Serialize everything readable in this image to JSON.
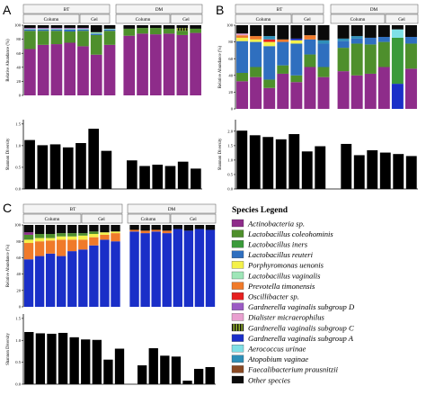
{
  "panel_labels": [
    "A",
    "B",
    "C"
  ],
  "group_labels": {
    "bt": "BT",
    "dm": "DM",
    "column": "Column",
    "gel": "Gel"
  },
  "axis_labels": {
    "abundance": "Relative Abundance (%)",
    "diversity": "Shannon Diversity"
  },
  "legend": {
    "title": "Species Legend",
    "items": [
      {
        "key": "actino",
        "label": "Actinobacteria sp.",
        "color": "#8e2c8a",
        "italic": true
      },
      {
        "key": "lcol",
        "label": "Lactobacillus coleohominis",
        "color": "#4e8f2c",
        "italic": true
      },
      {
        "key": "liners",
        "label": "Lactobacillus iners",
        "color": "#3a9a3a",
        "italic": true
      },
      {
        "key": "lreu",
        "label": "Lactobacillus reuteri",
        "color": "#2f6fbf",
        "italic": true
      },
      {
        "key": "porph",
        "label": "Porphyromonas uenonis",
        "color": "#f4f14a",
        "italic": true
      },
      {
        "key": "lvag",
        "label": "Lactobacillus vaginalis",
        "color": "#9fe6b8",
        "italic": true
      },
      {
        "key": "prev",
        "label": "Prevotella timonensis",
        "color": "#f07a2a",
        "italic": true
      },
      {
        "key": "osc",
        "label": "Oscillibacter sp.",
        "color": "#e62020",
        "italic": true
      },
      {
        "key": "gvD",
        "label": "Gardnerella vaginalis subgroup D",
        "color": "#9b5bc4",
        "italic": true
      },
      {
        "key": "dial",
        "label": "Dialister micraerophilus",
        "color": "#e9a0d0",
        "italic": true
      },
      {
        "key": "gvC",
        "label": "Gardnerella vaginalis subgroup C",
        "color": "#8fae2a",
        "italic": true,
        "striped": true
      },
      {
        "key": "gvA",
        "label": "Gardnerella vaginalis subgroup A",
        "color": "#1a2fc8",
        "italic": true
      },
      {
        "key": "aero",
        "label": "Aerococcus urinae",
        "color": "#7fe0e6",
        "italic": true
      },
      {
        "key": "atop",
        "label": "Atopobium vaginae",
        "color": "#2e8fb8",
        "italic": true
      },
      {
        "key": "faec",
        "label": "Faecalibacterium prausnitzii",
        "color": "#8a4a24",
        "italic": true
      },
      {
        "key": "other",
        "label": "Other species",
        "color": "#0a0a0a",
        "italic": true
      }
    ]
  },
  "chart_data": [
    {
      "type": "bar",
      "panel": "A",
      "title": "",
      "stacked": true,
      "ylabel": "Relative Abundance (%)",
      "ylim": [
        0,
        100
      ],
      "yticks": [
        "0",
        "20",
        "40",
        "60",
        "80",
        "100"
      ],
      "groups": [
        {
          "label": "BT",
          "subgroups": [
            {
              "label": "Column",
              "n": 5
            },
            {
              "label": "Gel",
              "n": 2
            }
          ]
        },
        {
          "label": "DM",
          "subgroups": [
            {
              "label": "Column",
              "n": 4
            },
            {
              "label": "Gel",
              "n": 2
            }
          ]
        }
      ],
      "bars": [
        [
          [
            "actino",
            66
          ],
          [
            "lcol",
            26
          ],
          [
            "lreu",
            2
          ],
          [
            "lvag",
            1
          ],
          [
            "gvD",
            1
          ],
          [
            "other",
            4
          ]
        ],
        [
          [
            "actino",
            72
          ],
          [
            "lcol",
            20
          ],
          [
            "lreu",
            2
          ],
          [
            "lvag",
            1
          ],
          [
            "gvD",
            1
          ],
          [
            "other",
            4
          ]
        ],
        [
          [
            "actino",
            73
          ],
          [
            "lcol",
            19
          ],
          [
            "lreu",
            2
          ],
          [
            "lvag",
            1
          ],
          [
            "gvD",
            1
          ],
          [
            "other",
            4
          ]
        ],
        [
          [
            "actino",
            75
          ],
          [
            "lcol",
            16
          ],
          [
            "lreu",
            3
          ],
          [
            "lvag",
            1
          ],
          [
            "gvD",
            1
          ],
          [
            "other",
            4
          ]
        ],
        [
          [
            "actino",
            70
          ],
          [
            "lcol",
            22
          ],
          [
            "lreu",
            2
          ],
          [
            "lvag",
            1
          ],
          [
            "gvD",
            1
          ],
          [
            "other",
            4
          ]
        ],
        [
          [
            "actino",
            58
          ],
          [
            "lcol",
            28
          ],
          [
            "lreu",
            2
          ],
          [
            "lvag",
            2
          ],
          [
            "other",
            10
          ]
        ],
        [
          [
            "actino",
            72
          ],
          [
            "lcol",
            20
          ],
          [
            "lreu",
            2
          ],
          [
            "lvag",
            1
          ],
          [
            "other",
            5
          ]
        ],
        [
          [
            "actino",
            85
          ],
          [
            "lcol",
            10
          ],
          [
            "other",
            5
          ]
        ],
        [
          [
            "actino",
            88
          ],
          [
            "lcol",
            8
          ],
          [
            "other",
            4
          ]
        ],
        [
          [
            "actino",
            87
          ],
          [
            "lcol",
            9
          ],
          [
            "other",
            4
          ]
        ],
        [
          [
            "actino",
            88
          ],
          [
            "lcol",
            7
          ],
          [
            "other",
            5
          ]
        ],
        [
          [
            "actino",
            86
          ],
          [
            "lcol",
            6
          ],
          [
            "gvC",
            4
          ],
          [
            "other",
            4
          ]
        ],
        [
          [
            "actino",
            89
          ],
          [
            "lcol",
            6
          ],
          [
            "other",
            5
          ]
        ]
      ]
    },
    {
      "type": "bar",
      "panel": "A",
      "title": "",
      "ylabel": "Shannon Diversity",
      "ylim": [
        0,
        1.6
      ],
      "yticks": [
        "0.0",
        "0.5",
        "1.0",
        "1.5"
      ],
      "values": [
        1.13,
        1.01,
        1.03,
        0.96,
        1.06,
        1.39,
        0.88,
        null,
        0.66,
        0.53,
        0.56,
        0.53,
        0.63,
        0.47
      ]
    },
    {
      "type": "bar",
      "panel": "B",
      "title": "",
      "stacked": true,
      "ylabel": "Relative Abundance (%)",
      "ylim": [
        0,
        100
      ],
      "yticks": [
        "0",
        "20",
        "40",
        "60",
        "80",
        "100"
      ],
      "groups": [
        {
          "label": "BT",
          "subgroups": [
            {
              "label": "Column",
              "n": 5
            },
            {
              "label": "Gel",
              "n": 2
            }
          ]
        },
        {
          "label": "DM",
          "subgroups": [
            {
              "label": "Column",
              "n": 4
            },
            {
              "label": "Gel",
              "n": 2
            }
          ]
        }
      ],
      "bars": [
        [
          [
            "actino",
            33
          ],
          [
            "lcol",
            10
          ],
          [
            "lreu",
            38
          ],
          [
            "porph",
            4
          ],
          [
            "prev",
            3
          ],
          [
            "dial",
            2
          ],
          [
            "other",
            10
          ]
        ],
        [
          [
            "actino",
            38
          ],
          [
            "lcol",
            12
          ],
          [
            "lreu",
            30
          ],
          [
            "porph",
            3
          ],
          [
            "prev",
            4
          ],
          [
            "other",
            13
          ]
        ],
        [
          [
            "actino",
            25
          ],
          [
            "lcol",
            10
          ],
          [
            "lreu",
            40
          ],
          [
            "porph",
            5
          ],
          [
            "osc",
            3
          ],
          [
            "atop",
            4
          ],
          [
            "other",
            13
          ]
        ],
        [
          [
            "actino",
            42
          ],
          [
            "lcol",
            10
          ],
          [
            "lreu",
            28
          ],
          [
            "prev",
            3
          ],
          [
            "other",
            17
          ]
        ],
        [
          [
            "actino",
            32
          ],
          [
            "lcol",
            8
          ],
          [
            "lreu",
            38
          ],
          [
            "porph",
            4
          ],
          [
            "gvA",
            2
          ],
          [
            "other",
            16
          ]
        ],
        [
          [
            "actino",
            50
          ],
          [
            "lcol",
            15
          ],
          [
            "lreu",
            18
          ],
          [
            "prev",
            5
          ],
          [
            "other",
            12
          ]
        ],
        [
          [
            "actino",
            38
          ],
          [
            "lcol",
            12
          ],
          [
            "lreu",
            28
          ],
          [
            "atop",
            4
          ],
          [
            "other",
            18
          ]
        ],
        [
          [
            "actino",
            45
          ],
          [
            "lcol",
            28
          ],
          [
            "lreu",
            8
          ],
          [
            "atop",
            3
          ],
          [
            "other",
            16
          ]
        ],
        [
          [
            "actino",
            40
          ],
          [
            "lcol",
            38
          ],
          [
            "lreu",
            6
          ],
          [
            "atop",
            3
          ],
          [
            "other",
            13
          ]
        ],
        [
          [
            "actino",
            42
          ],
          [
            "lcol",
            35
          ],
          [
            "lreu",
            8
          ],
          [
            "other",
            15
          ]
        ],
        [
          [
            "actino",
            50
          ],
          [
            "lcol",
            30
          ],
          [
            "lreu",
            6
          ],
          [
            "other",
            14
          ]
        ],
        [
          [
            "gvA",
            30
          ],
          [
            "liners",
            55
          ],
          [
            "aero",
            10
          ],
          [
            "other",
            5
          ]
        ],
        [
          [
            "actino",
            48
          ],
          [
            "lcol",
            30
          ],
          [
            "lreu",
            8
          ],
          [
            "other",
            14
          ]
        ]
      ]
    },
    {
      "type": "bar",
      "panel": "B",
      "title": "",
      "ylabel": "Shannon Diversity",
      "ylim": [
        0,
        2.4
      ],
      "yticks": [
        "0.0",
        "0.5",
        "1.0",
        "1.5",
        "2.0"
      ],
      "values": [
        2.02,
        1.86,
        1.8,
        1.72,
        1.9,
        1.3,
        1.48,
        null,
        1.56,
        1.17,
        1.34,
        1.26,
        1.21,
        1.14
      ]
    },
    {
      "type": "bar",
      "panel": "C",
      "title": "",
      "stacked": true,
      "ylabel": "Relative Abundance (%)",
      "ylim": [
        0,
        100
      ],
      "yticks": [
        "0",
        "20",
        "40",
        "60",
        "80",
        "100"
      ],
      "groups": [
        {
          "label": "BT",
          "subgroups": [
            {
              "label": "Column",
              "n": 6
            },
            {
              "label": "Gel",
              "n": 3
            }
          ]
        },
        {
          "label": "DM",
          "subgroups": [
            {
              "label": "Column",
              "n": 4
            },
            {
              "label": "Gel",
              "n": 4
            }
          ]
        }
      ],
      "bars": [
        [
          [
            "gvA",
            58
          ],
          [
            "prev",
            20
          ],
          [
            "porph",
            4
          ],
          [
            "lcol",
            6
          ],
          [
            "actino",
            3
          ],
          [
            "other",
            9
          ]
        ],
        [
          [
            "gvA",
            62
          ],
          [
            "prev",
            18
          ],
          [
            "porph",
            4
          ],
          [
            "lcol",
            5
          ],
          [
            "other",
            11
          ]
        ],
        [
          [
            "gvA",
            65
          ],
          [
            "prev",
            16
          ],
          [
            "porph",
            3
          ],
          [
            "lcol",
            5
          ],
          [
            "other",
            11
          ]
        ],
        [
          [
            "gvA",
            62
          ],
          [
            "prev",
            20
          ],
          [
            "porph",
            4
          ],
          [
            "lcol",
            4
          ],
          [
            "other",
            10
          ]
        ],
        [
          [
            "gvA",
            68
          ],
          [
            "prev",
            14
          ],
          [
            "porph",
            4
          ],
          [
            "lcol",
            4
          ],
          [
            "other",
            10
          ]
        ],
        [
          [
            "gvA",
            70
          ],
          [
            "prev",
            12
          ],
          [
            "porph",
            5
          ],
          [
            "lcol",
            3
          ],
          [
            "other",
            10
          ]
        ],
        [
          [
            "gvA",
            75
          ],
          [
            "prev",
            10
          ],
          [
            "porph",
            4
          ],
          [
            "lcol",
            3
          ],
          [
            "other",
            8
          ]
        ],
        [
          [
            "gvA",
            82
          ],
          [
            "prev",
            6
          ],
          [
            "porph",
            3
          ],
          [
            "other",
            9
          ]
        ],
        [
          [
            "gvA",
            80
          ],
          [
            "prev",
            10
          ],
          [
            "porph",
            2
          ],
          [
            "other",
            8
          ]
        ],
        [
          [
            "gvA",
            92
          ],
          [
            "prev",
            2
          ],
          [
            "other",
            6
          ]
        ],
        [
          [
            "gvA",
            90
          ],
          [
            "prev",
            3
          ],
          [
            "other",
            7
          ]
        ],
        [
          [
            "gvA",
            92
          ],
          [
            "prev",
            2
          ],
          [
            "other",
            6
          ]
        ],
        [
          [
            "gvA",
            90
          ],
          [
            "prev",
            3
          ],
          [
            "other",
            7
          ]
        ],
        [
          [
            "gvA",
            95
          ],
          [
            "other",
            5
          ]
        ],
        [
          [
            "gvA",
            93
          ],
          [
            "other",
            7
          ]
        ],
        [
          [
            "gvA",
            95
          ],
          [
            "other",
            5
          ]
        ],
        [
          [
            "gvA",
            94
          ],
          [
            "other",
            6
          ]
        ]
      ]
    },
    {
      "type": "bar",
      "panel": "C",
      "title": "",
      "ylabel": "Shannon Diversity",
      "ylim": [
        0,
        1.6
      ],
      "yticks": [
        "0.0",
        "0.5",
        "1.0",
        "1.5"
      ],
      "values": [
        1.19,
        1.16,
        1.15,
        1.17,
        1.07,
        1.02,
        1.01,
        0.56,
        0.81,
        null,
        0.43,
        0.82,
        0.65,
        0.63,
        0.08,
        0.35,
        0.39
      ]
    }
  ]
}
